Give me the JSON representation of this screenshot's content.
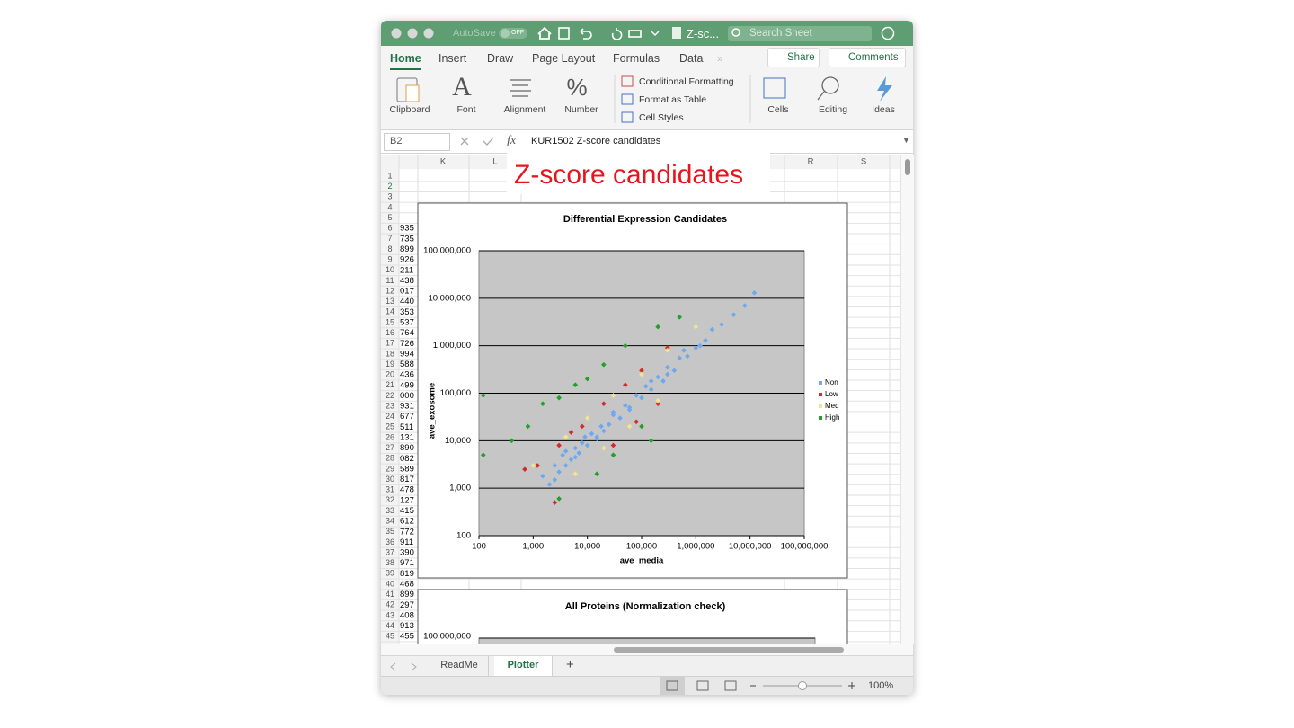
{
  "window": {
    "autosave": "AutoSave",
    "autosave_state": "OFF",
    "file_name": "Z-sc...",
    "search_placeholder": "Search Sheet"
  },
  "ribbon": {
    "tabs": [
      "Home",
      "Insert",
      "Draw",
      "Page Layout",
      "Formulas",
      "Data"
    ],
    "share": "Share",
    "comments": "Comments",
    "groups": [
      "Clipboard",
      "Font",
      "Alignment",
      "Number",
      "Cells",
      "Editing",
      "Ideas"
    ],
    "style_commands": [
      "Conditional Formatting",
      "Format as Table",
      "Cell Styles"
    ]
  },
  "formula_bar": {
    "name_box": "B2",
    "fx": "fx",
    "formula": "KUR1502 Z-score candidates"
  },
  "sheet": {
    "columns": [
      "K",
      "L",
      "R",
      "S"
    ],
    "row_numbers": [
      1,
      2,
      3,
      4,
      5,
      6,
      7,
      8,
      9,
      10,
      11,
      12,
      13,
      14,
      15,
      16,
      17,
      18,
      19,
      20,
      21,
      22,
      23,
      24,
      25,
      26,
      27,
      28,
      29,
      30,
      31,
      32,
      33,
      34,
      35,
      36,
      37,
      38,
      39,
      40,
      41,
      42,
      43,
      44,
      45
    ],
    "cell_values": [
      null,
      null,
      null,
      null,
      null,
      "935",
      "735",
      "899",
      "926",
      "211",
      "438",
      "017",
      "440",
      "353",
      "537",
      "764",
      "726",
      "994",
      "588",
      "436",
      "499",
      "000",
      "931",
      "677",
      "511",
      "131",
      "890",
      "082",
      "589",
      "817",
      "478",
      "127",
      "415",
      "612",
      "772",
      "911",
      "390",
      "971",
      "819",
      "468",
      "899",
      "297",
      "408",
      "913",
      "455"
    ],
    "overlay_title": "Z-score candidates"
  },
  "chart_data": [
    {
      "type": "scatter",
      "title": "Differential Expression Candidates",
      "x_label": "ave_media",
      "y_label": "ave_exosome",
      "xscale": "log",
      "yscale": "log",
      "xlim": [
        100,
        100000000
      ],
      "ylim": [
        100,
        100000000
      ],
      "xticks": [
        100,
        {
          "value": 1000,
          "label": "1,000"
        },
        {
          "value": 10000,
          "label": "10,000"
        },
        {
          "value": 100000,
          "label": "100,000"
        },
        {
          "value": 1000000,
          "label": "1,000,000"
        },
        {
          "value": 10000000,
          "label": "10,000,000"
        },
        {
          "value": 100000000,
          "label": "100,000,000"
        }
      ],
      "yticks": [
        100,
        {
          "value": 1000,
          "label": "1,000"
        },
        {
          "value": 10000,
          "label": "10,000"
        },
        {
          "value": 100000,
          "label": "100,000"
        },
        {
          "value": 1000000,
          "label": "1,000,000"
        },
        {
          "value": 10000000,
          "label": "10,000,000"
        },
        {
          "value": 100000000,
          "label": "100,000,000"
        }
      ],
      "grid": true,
      "legend": "right",
      "series": [
        {
          "name": "Non",
          "color": "#6fa8f0",
          "x": [
            1500,
            2000,
            2500,
            3000,
            3500,
            4000,
            5000,
            6000,
            7000,
            8000,
            10000,
            12000,
            15000,
            18000,
            20000,
            25000,
            30000,
            40000,
            50000,
            60000,
            80000,
            100000,
            120000,
            150000,
            200000,
            250000,
            300000,
            400000,
            500000,
            700000,
            1000000,
            1500000,
            2000000,
            3000000,
            5000000,
            8000000,
            12000000,
            2500,
            4000,
            6000,
            9000,
            15000,
            30000,
            60000,
            150000,
            300000,
            600000,
            1200000
          ],
          "values": [
            1800,
            1200,
            3000,
            2200,
            5000,
            3000,
            4000,
            7000,
            5500,
            9000,
            8000,
            14000,
            12000,
            20000,
            16000,
            22000,
            35000,
            30000,
            55000,
            45000,
            90000,
            80000,
            140000,
            120000,
            220000,
            180000,
            350000,
            300000,
            550000,
            600000,
            900000,
            1300000,
            2200000,
            2800000,
            4500000,
            7000000,
            13000000,
            1500,
            6000,
            4500,
            12000,
            11000,
            40000,
            50000,
            180000,
            250000,
            800000,
            1000000
          ]
        },
        {
          "name": "Low",
          "color": "#d42a2a",
          "x": [
            700,
            1200,
            3000,
            5000,
            8000,
            20000,
            50000,
            100000,
            300000,
            30000,
            80000,
            200000,
            2500
          ],
          "values": [
            2500,
            3000,
            8000,
            15000,
            20000,
            60000,
            150000,
            300000,
            900000,
            8000,
            25000,
            60000,
            500
          ]
        },
        {
          "name": "Med",
          "color": "#f3e48e",
          "x": [
            1000,
            4000,
            10000,
            30000,
            100000,
            300000,
            1000000,
            6000,
            20000,
            60000,
            200000
          ],
          "values": [
            3000,
            12000,
            30000,
            90000,
            250000,
            800000,
            2500000,
            2000,
            7000,
            20000,
            70000
          ]
        },
        {
          "name": "High",
          "color": "#22a02a",
          "x": [
            120,
            120,
            400,
            800,
            1500,
            3000,
            6000,
            10000,
            20000,
            50000,
            200000,
            500000,
            30000,
            100000,
            3000,
            15000,
            150000
          ],
          "values": [
            90000,
            5000,
            10000,
            20000,
            60000,
            80000,
            150000,
            200000,
            400000,
            1000000,
            2500000,
            4000000,
            5000,
            20000,
            600,
            2000,
            10000
          ]
        }
      ]
    },
    {
      "type": "scatter",
      "title": "All Proteins (Normalization check)",
      "yticks": [
        {
          "value": 100000000,
          "label": "100,000,000"
        }
      ]
    }
  ],
  "sheet_tabs": {
    "tabs": [
      "ReadMe",
      "Plotter"
    ],
    "add": "+",
    "active": 1
  },
  "status_bar": {
    "zoom": "100%"
  }
}
